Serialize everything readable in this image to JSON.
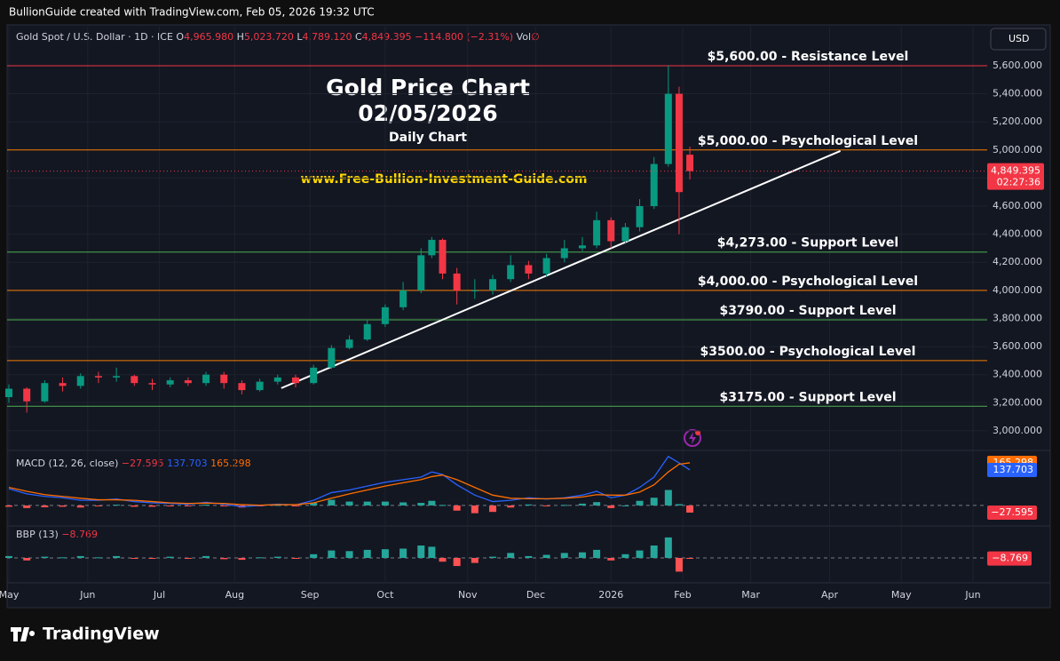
{
  "header": {
    "attribution": "BullionGuide created with TradingView.com, Feb 05, 2026 19:32 UTC",
    "symbol": "Gold Spot / U.S. Dollar · 1D · ICE",
    "ohlc": [
      {
        "key": "O",
        "text": "4,965.980"
      },
      {
        "key": "H",
        "text": "5,023.720"
      },
      {
        "key": "L",
        "text": "4,789.120"
      },
      {
        "key": "C",
        "text": "4,849.395"
      }
    ],
    "change": "−114.800 (−2.31%)",
    "volume": "Vol",
    "volume_value": "∅",
    "currency": "USD",
    "brand": "TradingView"
  },
  "chart_data": {
    "type": "candlestick",
    "title": "Gold Price Chart",
    "subtitle": "02/05/2026",
    "caption": "Daily Chart",
    "website": "www.Free-Bullion-Investment-Guide.com",
    "x": [
      0,
      5,
      10,
      15,
      20,
      25,
      30,
      35,
      40,
      45,
      50,
      55,
      60,
      65,
      70,
      75,
      80,
      85,
      90,
      95,
      100,
      105,
      110,
      115,
      118,
      121,
      125,
      130,
      135,
      140,
      145,
      150,
      155,
      160,
      164,
      168,
      172,
      176,
      180,
      184,
      187,
      190
    ],
    "open": [
      3240,
      3300,
      3210,
      3340,
      3320,
      3390,
      3380,
      3390,
      3340,
      3330,
      3360,
      3340,
      3400,
      3340,
      3290,
      3350,
      3380,
      3340,
      3450,
      3590,
      3650,
      3760,
      3880,
      4000,
      4250,
      4360,
      4120,
      4000,
      4000,
      4080,
      4180,
      4120,
      4230,
      4300,
      4320,
      4500,
      4350,
      4450,
      4600,
      4900,
      5400,
      4965.98
    ],
    "high": [
      3330,
      3310,
      3360,
      3380,
      3410,
      3420,
      3450,
      3400,
      3370,
      3380,
      3380,
      3420,
      3420,
      3360,
      3370,
      3400,
      3400,
      3470,
      3610,
      3680,
      3790,
      3900,
      4060,
      4300,
      4380,
      4370,
      4160,
      4080,
      4110,
      4250,
      4210,
      4260,
      4360,
      4380,
      4560,
      4520,
      4480,
      4650,
      4950,
      5600,
      5450,
      5023.72
    ],
    "low": [
      3200,
      3130,
      3200,
      3280,
      3300,
      3340,
      3350,
      3320,
      3290,
      3310,
      3320,
      3320,
      3300,
      3260,
      3280,
      3330,
      3310,
      3330,
      3440,
      3580,
      3640,
      3740,
      3860,
      3980,
      4230,
      4080,
      3900,
      3940,
      3970,
      4060,
      4080,
      4100,
      4200,
      4280,
      4300,
      4300,
      4330,
      4420,
      4580,
      4880,
      4400,
      4789.12
    ],
    "close": [
      3300,
      3210,
      3340,
      3320,
      3390,
      3380,
      3390,
      3340,
      3330,
      3360,
      3340,
      3400,
      3340,
      3290,
      3350,
      3380,
      3340,
      3450,
      3590,
      3650,
      3760,
      3880,
      4000,
      4250,
      4360,
      4120,
      4000,
      4000,
      4080,
      4180,
      4120,
      4230,
      4300,
      4320,
      4500,
      4350,
      4450,
      4600,
      4900,
      5400,
      4700,
      4849.395
    ],
    "up_color": "#089981",
    "down_color": "#f23645",
    "xlim": [
      0,
      269
    ],
    "xticks": [
      {
        "value": 0,
        "label": "May"
      },
      {
        "value": 22,
        "label": "Jun"
      },
      {
        "value": 42,
        "label": "Jul"
      },
      {
        "value": 63,
        "label": "Aug"
      },
      {
        "value": 84,
        "label": "Sep"
      },
      {
        "value": 105,
        "label": "Oct"
      },
      {
        "value": 128,
        "label": "Nov"
      },
      {
        "value": 147,
        "label": "Dec"
      },
      {
        "value": 168,
        "label": "2026"
      },
      {
        "value": 188,
        "label": "Feb"
      },
      {
        "value": 207,
        "label": "Mar"
      },
      {
        "value": 229,
        "label": "Apr"
      },
      {
        "value": 249,
        "label": "May"
      },
      {
        "value": 269,
        "label": "Jun"
      }
    ],
    "ylim": [
      2873,
      5878
    ],
    "yticks": [
      {
        "value": 3000,
        "label": "3,000.000"
      },
      {
        "value": 3200,
        "label": "3,200.000"
      },
      {
        "value": 3400,
        "label": "3,400.000"
      },
      {
        "value": 3600,
        "label": "3,600.000"
      },
      {
        "value": 3800,
        "label": "3,800.000"
      },
      {
        "value": 4000,
        "label": "4,000.000"
      },
      {
        "value": 4200,
        "label": "4,200.000"
      },
      {
        "value": 4400,
        "label": "4,400.000"
      },
      {
        "value": 4600,
        "label": "4,600.000"
      },
      {
        "value": 4800,
        "label": "4,800.000"
      },
      {
        "value": 5000,
        "label": "5,000.000"
      },
      {
        "value": 5200,
        "label": "5,200.000"
      },
      {
        "value": 5400,
        "label": "5,400.000"
      },
      {
        "value": 5600,
        "label": "5,600.000"
      }
    ],
    "grid": true,
    "levels": [
      {
        "value": 5600,
        "label": "$5,600.00 - Resistance Level",
        "color": "#f23645"
      },
      {
        "value": 5000,
        "label": "$5,000.00 - Psychological Level",
        "color": "#f57c00"
      },
      {
        "value": 4273,
        "label": "$4,273.00 - Support Level",
        "color": "#4caf50"
      },
      {
        "value": 4000,
        "label": "$4,000.00 - Psychological Level",
        "color": "#f57c00"
      },
      {
        "value": 3790,
        "label": "$3790.00 - Support Level",
        "color": "#4caf50"
      },
      {
        "value": 3500,
        "label": "$3500.00 - Psychological Level",
        "color": "#f57c00"
      },
      {
        "value": 3175,
        "label": "$3175.00 - Support Level",
        "color": "#4caf50"
      }
    ],
    "trendline": {
      "x": [
        76,
        232
      ],
      "y": [
        3304,
        4993
      ],
      "color": "#ffffff"
    },
    "last_price": {
      "value": 4849.395,
      "label": "4,849.395",
      "countdown": "02:27:36"
    },
    "macd": {
      "title": "MACD (12, 26, close)",
      "macd": [
        65,
        45,
        35,
        30,
        20,
        20,
        25,
        15,
        10,
        8,
        5,
        12,
        5,
        -5,
        0,
        5,
        2,
        20,
        50,
        60,
        75,
        90,
        100,
        110,
        130,
        120,
        80,
        40,
        15,
        20,
        30,
        25,
        30,
        40,
        55,
        30,
        40,
        70,
        110,
        190,
        165,
        137.703
      ],
      "signal": [
        70,
        55,
        42,
        35,
        28,
        22,
        22,
        20,
        15,
        10,
        8,
        9,
        8,
        3,
        1,
        3,
        3,
        10,
        28,
        45,
        60,
        75,
        88,
        100,
        112,
        118,
        100,
        70,
        40,
        28,
        26,
        26,
        28,
        33,
        42,
        40,
        40,
        52,
        80,
        130,
        160,
        165.298
      ],
      "histogram": [
        -5,
        -10,
        -7,
        -5,
        -8,
        -2,
        3,
        -5,
        -5,
        -2,
        -3,
        3,
        -3,
        -8,
        -1,
        2,
        -1,
        10,
        22,
        15,
        15,
        15,
        12,
        10,
        18,
        2,
        -20,
        -30,
        -25,
        -8,
        4,
        -1,
        2,
        7,
        13,
        -10,
        0,
        18,
        30,
        60,
        5,
        -27.595
      ],
      "value_labels": {
        "histogram": "−27.595",
        "macd": "137.703",
        "signal": "165.298"
      },
      "macd_color": "#2962ff",
      "signal_color": "#ff6d00",
      "ylim": [
        -107,
        203
      ]
    },
    "bbp": {
      "title": "BBP (13)",
      "values": [
        30,
        -40,
        20,
        10,
        30,
        10,
        30,
        -10,
        -5,
        20,
        -5,
        30,
        -20,
        -30,
        10,
        20,
        -10,
        60,
        120,
        110,
        130,
        140,
        150,
        200,
        180,
        -60,
        -130,
        -80,
        20,
        80,
        30,
        50,
        80,
        90,
        130,
        -40,
        60,
        120,
        200,
        330,
        -220,
        -8.769
      ],
      "value_label": "−8.769",
      "ylim": [
        -400,
        400
      ]
    }
  }
}
